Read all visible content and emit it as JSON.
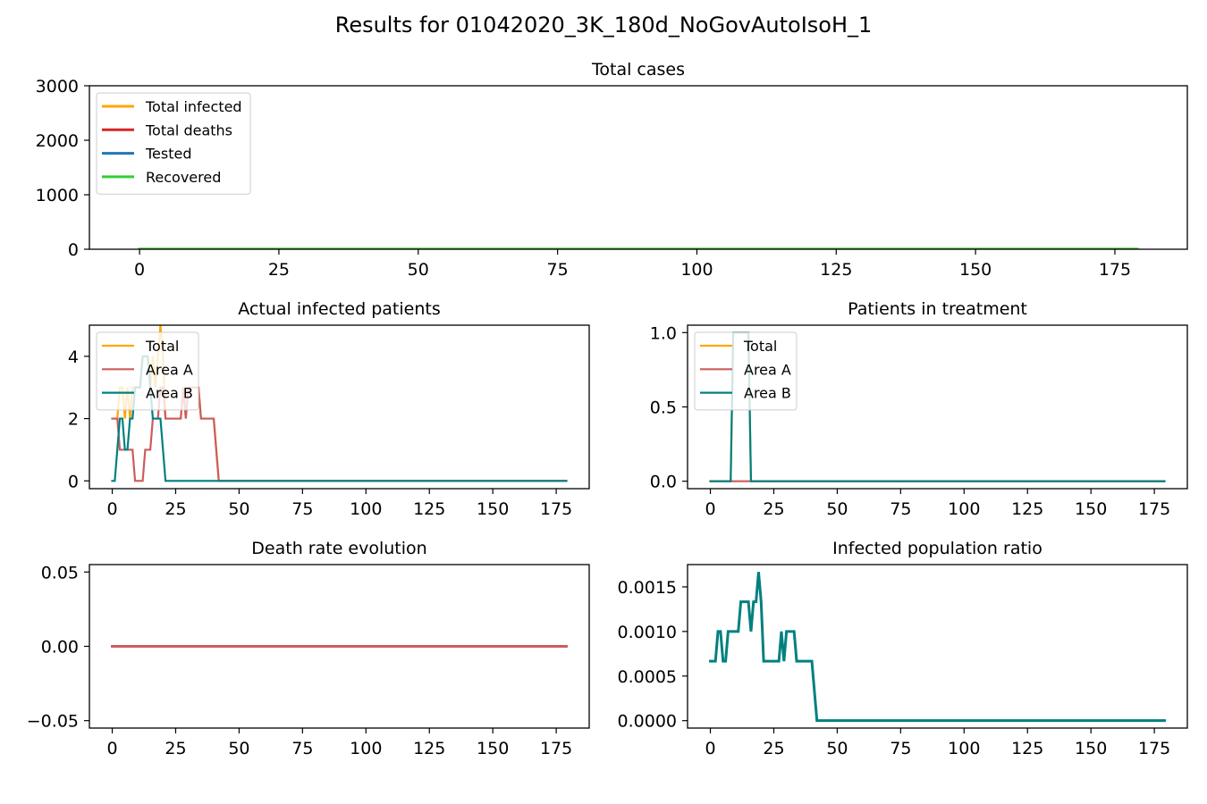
{
  "figure": {
    "suptitle": "Results for 01042020_3K_180d_NoGovAutoIsoH_1"
  },
  "chart_data": [
    {
      "id": "total_cases",
      "type": "line",
      "title": "Total cases",
      "xlabel": "",
      "ylabel": "",
      "xlim": [
        -9,
        188
      ],
      "ylim": [
        0,
        3000
      ],
      "xticks": [
        0,
        25,
        50,
        75,
        100,
        125,
        150,
        175
      ],
      "yticks": [
        0,
        1000,
        2000,
        3000
      ],
      "legend": "top-left",
      "grid": false,
      "series": [
        {
          "name": "Total infected",
          "color": "#ffa500",
          "x_range": [
            0,
            179
          ],
          "values_constant": 2
        },
        {
          "name": "Total deaths",
          "color": "#d62728",
          "x_range": [
            0,
            179
          ],
          "values_constant": 0
        },
        {
          "name": "Tested",
          "color": "#1f77b4",
          "x_range": [
            0,
            179
          ],
          "values_constant": 0
        },
        {
          "name": "Recovered",
          "color": "#32cd32",
          "x_range": [
            0,
            179
          ],
          "values_constant": 2
        }
      ]
    },
    {
      "id": "actual_infected",
      "type": "line",
      "title": "Actual infected patients",
      "xlabel": "",
      "ylabel": "",
      "xlim": [
        -9,
        188
      ],
      "ylim": [
        -0.25,
        5.0
      ],
      "xticks": [
        0,
        25,
        50,
        75,
        100,
        125,
        150,
        175
      ],
      "yticks": [
        0,
        2,
        4
      ],
      "legend": "top-left",
      "grid": false,
      "series": [
        {
          "name": "Total",
          "color": "#ffa500",
          "points": [
            [
              0,
              2
            ],
            [
              1,
              2
            ],
            [
              2,
              2
            ],
            [
              3,
              3
            ],
            [
              4,
              3
            ],
            [
              5,
              2
            ],
            [
              6,
              3
            ],
            [
              7,
              2
            ],
            [
              8,
              3
            ],
            [
              9,
              3
            ],
            [
              10,
              3
            ],
            [
              11,
              3
            ],
            [
              12,
              4
            ],
            [
              13,
              4
            ],
            [
              14,
              4
            ],
            [
              15,
              3
            ],
            [
              16,
              4
            ],
            [
              17,
              3
            ],
            [
              18,
              4
            ],
            [
              19,
              5
            ],
            [
              20,
              4
            ],
            [
              21,
              2
            ],
            [
              22,
              2
            ],
            [
              23,
              2
            ],
            [
              24,
              2
            ],
            [
              25,
              2
            ],
            [
              26,
              2
            ],
            [
              27,
              2
            ],
            [
              28,
              3
            ],
            [
              29,
              2
            ],
            [
              30,
              3
            ],
            [
              31,
              3
            ],
            [
              32,
              3
            ],
            [
              33,
              3
            ],
            [
              34,
              3
            ],
            [
              35,
              2
            ],
            [
              36,
              2
            ],
            [
              37,
              2
            ],
            [
              38,
              2
            ],
            [
              39,
              2
            ],
            [
              40,
              2
            ],
            [
              41,
              1
            ],
            [
              42,
              0
            ],
            [
              179,
              0
            ]
          ]
        },
        {
          "name": "Area A",
          "color": "#cd5c5c",
          "points": [
            [
              0,
              2
            ],
            [
              1,
              2
            ],
            [
              2,
              2
            ],
            [
              3,
              1
            ],
            [
              4,
              1
            ],
            [
              5,
              1
            ],
            [
              6,
              1
            ],
            [
              7,
              1
            ],
            [
              8,
              1
            ],
            [
              9,
              0
            ],
            [
              10,
              0
            ],
            [
              11,
              0
            ],
            [
              12,
              0
            ],
            [
              13,
              1
            ],
            [
              14,
              1
            ],
            [
              15,
              1
            ],
            [
              16,
              2
            ],
            [
              17,
              2
            ],
            [
              18,
              2
            ],
            [
              19,
              3
            ],
            [
              20,
              3
            ],
            [
              21,
              2
            ],
            [
              22,
              2
            ],
            [
              23,
              2
            ],
            [
              24,
              2
            ],
            [
              25,
              2
            ],
            [
              26,
              2
            ],
            [
              27,
              2
            ],
            [
              28,
              3
            ],
            [
              29,
              2
            ],
            [
              30,
              3
            ],
            [
              31,
              3
            ],
            [
              32,
              3
            ],
            [
              33,
              3
            ],
            [
              34,
              3
            ],
            [
              35,
              2
            ],
            [
              36,
              2
            ],
            [
              37,
              2
            ],
            [
              38,
              2
            ],
            [
              39,
              2
            ],
            [
              40,
              2
            ],
            [
              41,
              1
            ],
            [
              42,
              0
            ],
            [
              179,
              0
            ]
          ]
        },
        {
          "name": "Area B",
          "color": "#008080",
          "points": [
            [
              0,
              0
            ],
            [
              1,
              0
            ],
            [
              2,
              1
            ],
            [
              3,
              2
            ],
            [
              4,
              2
            ],
            [
              5,
              1
            ],
            [
              6,
              1
            ],
            [
              7,
              2
            ],
            [
              8,
              2
            ],
            [
              9,
              3
            ],
            [
              10,
              3
            ],
            [
              11,
              3
            ],
            [
              12,
              4
            ],
            [
              13,
              4
            ],
            [
              14,
              4
            ],
            [
              15,
              3
            ],
            [
              16,
              2
            ],
            [
              17,
              2
            ],
            [
              18,
              2
            ],
            [
              19,
              2
            ],
            [
              20,
              1
            ],
            [
              21,
              0
            ],
            [
              179,
              0
            ]
          ]
        }
      ]
    },
    {
      "id": "in_treatment",
      "type": "line",
      "title": "Patients in treatment",
      "xlabel": "",
      "ylabel": "",
      "xlim": [
        -9,
        188
      ],
      "ylim": [
        -0.05,
        1.05
      ],
      "xticks": [
        0,
        25,
        50,
        75,
        100,
        125,
        150,
        175
      ],
      "yticks": [
        0.0,
        0.5,
        1.0
      ],
      "ytick_labels": [
        "0.0",
        "0.5",
        "1.0"
      ],
      "legend": "top-left",
      "grid": false,
      "series": [
        {
          "name": "Total",
          "color": "#ffa500",
          "points": [
            [
              0,
              0
            ],
            [
              8,
              0
            ],
            [
              9,
              1
            ],
            [
              15,
              1
            ],
            [
              16,
              0
            ],
            [
              179,
              0
            ]
          ]
        },
        {
          "name": "Area A",
          "color": "#cd5c5c",
          "points": [
            [
              0,
              0
            ],
            [
              179,
              0
            ]
          ]
        },
        {
          "name": "Area B",
          "color": "#008080",
          "points": [
            [
              0,
              0
            ],
            [
              8,
              0
            ],
            [
              9,
              1
            ],
            [
              15,
              1
            ],
            [
              16,
              0
            ],
            [
              179,
              0
            ]
          ]
        }
      ]
    },
    {
      "id": "death_rate",
      "type": "line",
      "title": "Death rate evolution",
      "xlabel": "",
      "ylabel": "",
      "xlim": [
        -9,
        188
      ],
      "ylim": [
        -0.055,
        0.055
      ],
      "xticks": [
        0,
        25,
        50,
        75,
        100,
        125,
        150,
        175
      ],
      "yticks": [
        -0.05,
        0.0,
        0.05
      ],
      "ytick_labels": [
        "−0.05",
        "0.00",
        "0.05"
      ],
      "grid": false,
      "series": [
        {
          "color": "#cd5c5c",
          "points": [
            [
              0,
              0
            ],
            [
              179,
              0
            ]
          ]
        }
      ]
    },
    {
      "id": "infected_ratio",
      "type": "line",
      "title": "Infected population ratio",
      "xlabel": "",
      "ylabel": "",
      "xlim": [
        -9,
        188
      ],
      "ylim": [
        -8.33e-05,
        0.00175
      ],
      "xticks": [
        0,
        25,
        50,
        75,
        100,
        125,
        150,
        175
      ],
      "yticks": [
        0.0,
        0.0005,
        0.001,
        0.0015
      ],
      "ytick_labels": [
        "0.0000",
        "0.0005",
        "0.0010",
        "0.0015"
      ],
      "grid": false,
      "series": [
        {
          "color": "#008080",
          "points": [
            [
              0,
              0.000667
            ],
            [
              2,
              0.000667
            ],
            [
              3,
              0.001
            ],
            [
              4,
              0.001
            ],
            [
              5,
              0.000667
            ],
            [
              6,
              0.000667
            ],
            [
              7,
              0.001
            ],
            [
              8,
              0.001
            ],
            [
              9,
              0.001
            ],
            [
              10,
              0.001
            ],
            [
              11,
              0.001
            ],
            [
              12,
              0.001333
            ],
            [
              13,
              0.001333
            ],
            [
              14,
              0.001333
            ],
            [
              15,
              0.001333
            ],
            [
              16,
              0.001
            ],
            [
              17,
              0.001333
            ],
            [
              18,
              0.001333
            ],
            [
              19,
              0.001667
            ],
            [
              20,
              0.001333
            ],
            [
              21,
              0.000667
            ],
            [
              22,
              0.000667
            ],
            [
              23,
              0.000667
            ],
            [
              24,
              0.000667
            ],
            [
              25,
              0.000667
            ],
            [
              26,
              0.000667
            ],
            [
              27,
              0.000667
            ],
            [
              28,
              0.001
            ],
            [
              29,
              0.000667
            ],
            [
              30,
              0.001
            ],
            [
              31,
              0.001
            ],
            [
              32,
              0.001
            ],
            [
              33,
              0.001
            ],
            [
              34,
              0.000667
            ],
            [
              35,
              0.000667
            ],
            [
              36,
              0.000667
            ],
            [
              37,
              0.000667
            ],
            [
              38,
              0.000667
            ],
            [
              39,
              0.000667
            ],
            [
              40,
              0.000667
            ],
            [
              41,
              0.000333
            ],
            [
              42,
              0
            ],
            [
              179,
              0
            ]
          ]
        }
      ]
    }
  ]
}
